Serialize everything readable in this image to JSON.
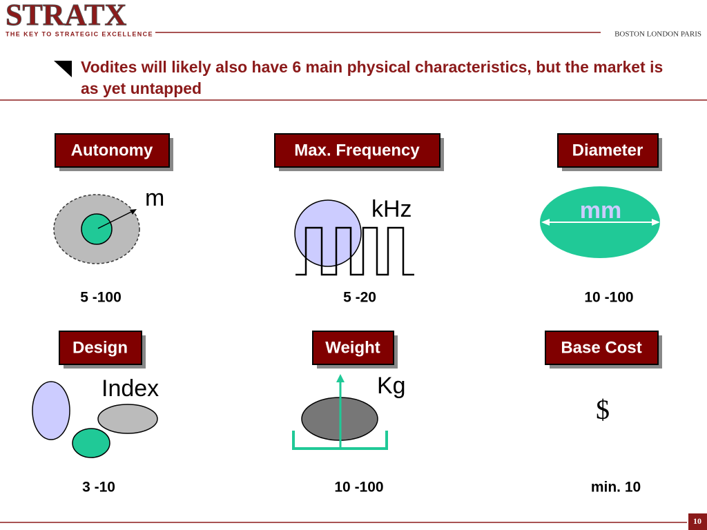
{
  "header": {
    "logo": "STRATX",
    "tagline": "THE KEY TO STRATEGIC EXCELLENCE",
    "locations": "BOSTON LONDON PARIS"
  },
  "title": "Vodites will likely also have 6 main physical characteristics, but the market is as yet untapped",
  "characteristics": [
    {
      "label": "Autonomy",
      "unit": "m",
      "range": "5 -100"
    },
    {
      "label": "Max. Frequency",
      "unit": "kHz",
      "range": "5 -20"
    },
    {
      "label": "Diameter",
      "unit": "mm",
      "range": "10 -100"
    },
    {
      "label": "Design",
      "unit": "Index",
      "range": "3 -10"
    },
    {
      "label": "Weight",
      "unit": "Kg",
      "range": "10 -100"
    },
    {
      "label": "Base Cost",
      "unit": "$",
      "range": "min. 10"
    }
  ],
  "page_number": "10"
}
